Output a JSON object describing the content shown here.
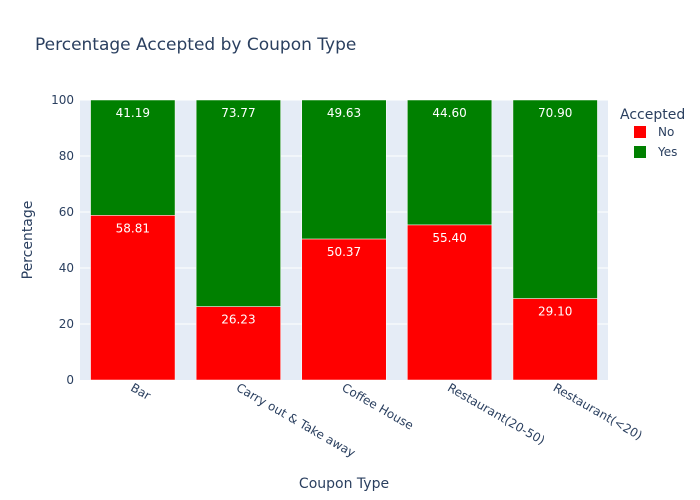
{
  "chart_data": {
    "type": "bar",
    "stacked": true,
    "title": "Percentage Accepted by Coupon Type",
    "xlabel": "Coupon Type",
    "ylabel": "Percentage",
    "ylim": [
      0,
      100
    ],
    "yticks": [
      0,
      20,
      40,
      60,
      80,
      100
    ],
    "categories": [
      "Bar",
      "Carry out & Take away",
      "Coffee House",
      "Restaurant(20-50)",
      "Restaurant(<20)"
    ],
    "series": [
      {
        "name": "No",
        "color": "#ff0000",
        "values": [
          58.81,
          26.23,
          50.37,
          55.4,
          29.1
        ],
        "labels": [
          "58.81",
          "26.23",
          "50.37",
          "55.40",
          "29.10"
        ]
      },
      {
        "name": "Yes",
        "color": "#008000",
        "values": [
          41.19,
          73.77,
          49.63,
          44.6,
          70.9
        ],
        "labels": [
          "41.19",
          "73.77",
          "49.63",
          "44.60",
          "70.90"
        ]
      }
    ],
    "legend": {
      "title": "Accepted",
      "position": "top-right"
    },
    "grid": true,
    "plot_background": "#e5ecf6"
  }
}
